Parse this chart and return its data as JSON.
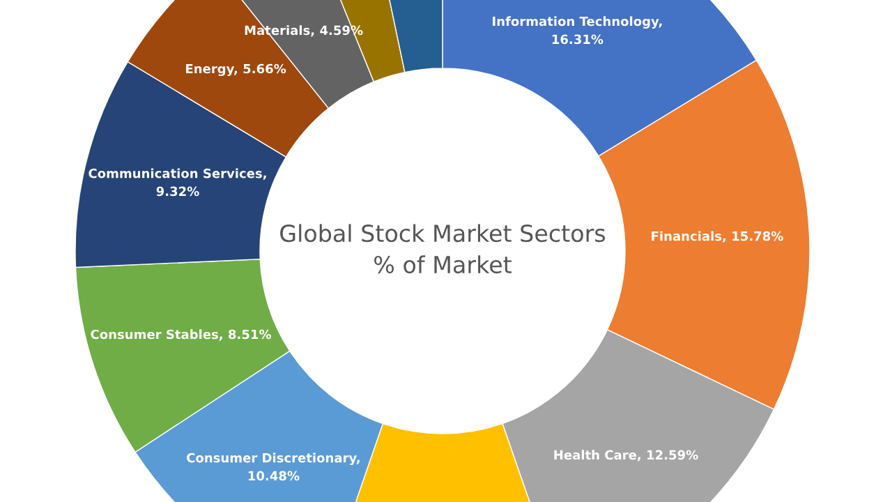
{
  "chart_data": {
    "type": "donut",
    "title": "Global Stock Market Sectors\n% of Market",
    "categories": [
      "Information Technology",
      "Financials",
      "Health Care",
      null,
      "Consumer Discretionary",
      "Consumer Stables",
      "Communication Services",
      "Energy",
      "Materials",
      null,
      null
    ],
    "values": [
      16.31,
      15.78,
      12.59,
      10.62,
      10.48,
      8.51,
      9.32,
      5.66,
      4.59,
      2.83,
      3.31
    ],
    "colors": [
      "#4472c4",
      "#ed7d31",
      "#a5a5a5",
      "#ffc000",
      "#5b9bd5",
      "#70ad47",
      "#264478",
      "#9e480e",
      "#636363",
      "#997300",
      "#255e91"
    ],
    "value_labels": [
      ",\n16.31%",
      ", 15.78%",
      ", 12.59%",
      null,
      ",\n10.48%",
      ", 8.51%",
      ",\n9.32%",
      ", 5.66%",
      ", 4.59%",
      null,
      null
    ],
    "legend": false
  }
}
